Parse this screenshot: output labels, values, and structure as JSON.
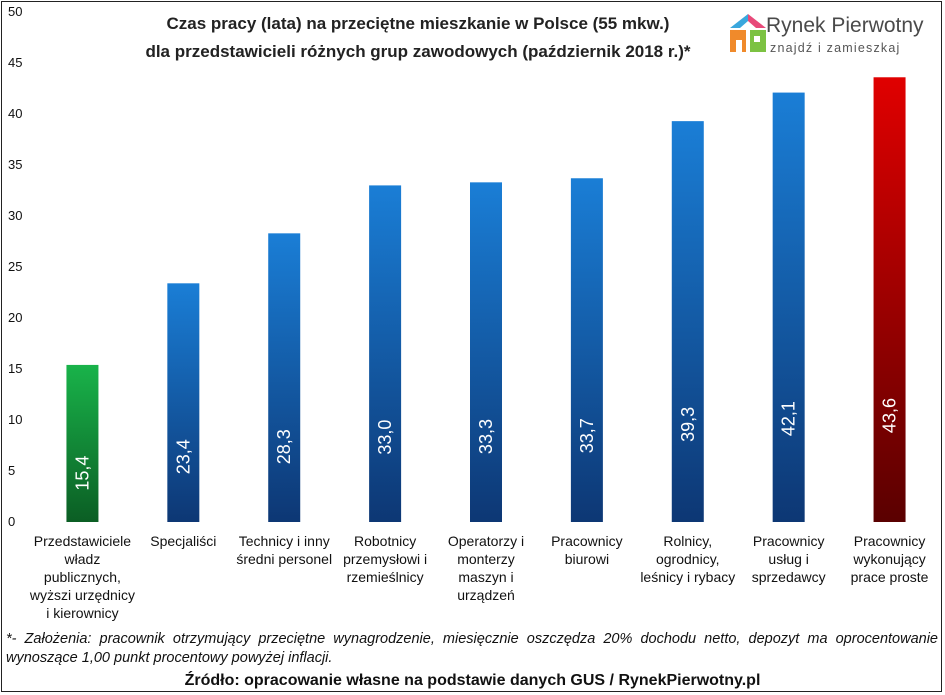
{
  "title_line1": "Czas pracy (lata) na przeciętne mieszkanie w Polsce (55 mkw.)",
  "title_line2": "dla przedstawicieli różnych grup zawodowych (październik 2018 r.)*",
  "logo": {
    "name": "Rynek Pierwotny",
    "tagline": "znajdź i zamieszkaj"
  },
  "footnote": "*- Założenia: pracownik otrzymujący przeciętne wynagrodzenie, miesięcznie oszczędza 20% dochodu netto, depozyt ma oprocentowanie wynoszące 1,00 punkt procentowy powyżej inflacji.",
  "source": "Źródło: opracowanie własne na podstawie danych GUS / RynekPierwotny.pl",
  "chart_data": {
    "type": "bar",
    "categories": [
      [
        "Przedstawiciele",
        "władz",
        "publicznych,",
        "wyższi urzędnicy",
        "i kierownicy"
      ],
      [
        "Specjaliści"
      ],
      [
        "Technicy i inny",
        "średni personel"
      ],
      [
        "Robotnicy",
        "przemysłowi i",
        "rzemieślnicy"
      ],
      [
        "Operatorzy i",
        "monterzy",
        "maszyn i",
        "urządzeń"
      ],
      [
        "Pracownicy",
        "biurowi"
      ],
      [
        "Rolnicy,",
        "ogrodnicy,",
        "leśnicy i rybacy"
      ],
      [
        "Pracownicy",
        "usług i",
        "sprzedawcy"
      ],
      [
        "Pracownicy",
        "wykonujący",
        "prace proste"
      ]
    ],
    "values": [
      15.4,
      23.4,
      28.3,
      33.0,
      33.3,
      33.7,
      39.3,
      42.1,
      43.6
    ],
    "value_labels": [
      "15,4",
      "23,4",
      "28,3",
      "33,0",
      "33,3",
      "33,7",
      "39,3",
      "42,1",
      "43,6"
    ],
    "bar_styles": [
      "green",
      "blue",
      "blue",
      "blue",
      "blue",
      "blue",
      "blue",
      "blue",
      "red"
    ],
    "ylim": [
      0,
      50
    ],
    "yticks": [
      0,
      5,
      10,
      15,
      20,
      25,
      30,
      35,
      40,
      45,
      50
    ],
    "grid": false,
    "legend": "none",
    "colors": {
      "green_top": "#19b34a",
      "green_bottom": "#0b5e24",
      "blue_top": "#1a7ed6",
      "blue_bottom": "#0d3774",
      "red_top": "#e00000",
      "red_bottom": "#5a0000"
    }
  }
}
